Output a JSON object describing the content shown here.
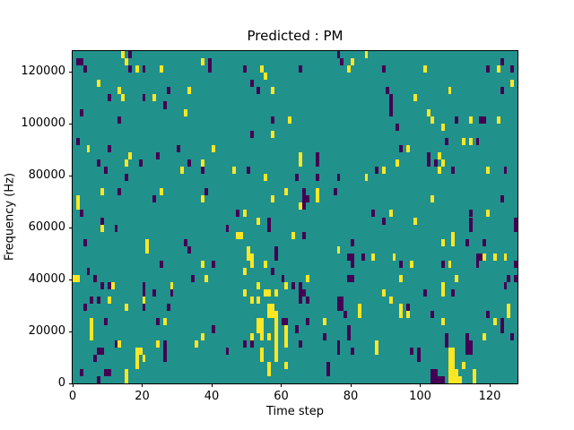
{
  "chart_data": {
    "type": "heatmap",
    "title": "Predicted : PM",
    "xlabel": "Time step",
    "ylabel": "Frequency (Hz)",
    "x_ticks": [
      "0",
      "20",
      "40",
      "60",
      "80",
      "100",
      "120"
    ],
    "x_tick_values": [
      0,
      20,
      40,
      60,
      80,
      100,
      120
    ],
    "y_ticks": [
      "0",
      "20000",
      "40000",
      "60000",
      "80000",
      "100000",
      "120000"
    ],
    "y_tick_values": [
      0,
      20000,
      40000,
      60000,
      80000,
      100000,
      120000
    ],
    "x_range": [
      0,
      128
    ],
    "y_range": [
      0,
      128000
    ],
    "grid_cols": 128,
    "grid_rows": 46,
    "legend": "none",
    "grid_lines": "off",
    "colors": {
      "background": "#21918c",
      "low": "#440154",
      "high": "#fde725",
      "spine": "#000000",
      "text": "#000000"
    },
    "cells_low": [
      [
        1,
        44
      ],
      [
        2,
        44
      ],
      [
        3,
        43
      ],
      [
        16,
        45
      ],
      [
        16,
        43
      ],
      [
        20,
        43
      ],
      [
        27,
        40
      ],
      [
        10,
        39
      ],
      [
        20,
        39
      ],
      [
        26,
        38
      ],
      [
        2,
        37
      ],
      [
        13,
        36
      ],
      [
        1,
        33
      ],
      [
        10,
        32
      ],
      [
        24,
        31
      ],
      [
        30,
        32
      ],
      [
        39,
        44
      ],
      [
        39,
        43
      ],
      [
        76,
        45
      ],
      [
        77,
        44
      ],
      [
        49,
        43
      ],
      [
        51,
        41
      ],
      [
        53,
        40
      ],
      [
        65,
        43
      ],
      [
        57,
        36
      ],
      [
        51,
        34
      ],
      [
        70,
        31
      ],
      [
        123,
        44
      ],
      [
        89,
        43
      ],
      [
        119,
        43
      ],
      [
        126,
        43
      ],
      [
        90,
        40
      ],
      [
        91,
        39
      ],
      [
        91,
        38
      ],
      [
        91,
        37
      ],
      [
        110,
        36
      ],
      [
        117,
        36
      ],
      [
        118,
        36
      ],
      [
        93,
        35
      ],
      [
        107,
        33
      ],
      [
        116,
        33
      ],
      [
        94,
        32
      ],
      [
        102,
        31
      ],
      [
        123,
        40
      ],
      [
        7,
        30
      ],
      [
        19,
        30
      ],
      [
        33,
        30
      ],
      [
        9,
        29
      ],
      [
        37,
        29
      ],
      [
        15,
        28
      ],
      [
        13,
        26
      ],
      [
        38,
        26
      ],
      [
        23,
        25
      ],
      [
        2,
        23
      ],
      [
        8,
        22
      ],
      [
        12,
        21
      ],
      [
        3,
        19
      ],
      [
        32,
        19
      ],
      [
        33,
        18
      ],
      [
        25,
        16
      ],
      [
        40,
        16
      ],
      [
        4,
        15
      ],
      [
        70,
        30
      ],
      [
        50,
        29
      ],
      [
        64,
        28
      ],
      [
        70,
        28
      ],
      [
        76,
        28
      ],
      [
        66,
        26
      ],
      [
        66,
        25
      ],
      [
        67,
        25
      ],
      [
        66,
        24
      ],
      [
        75,
        26
      ],
      [
        47,
        23
      ],
      [
        56,
        22
      ],
      [
        56,
        21
      ],
      [
        44,
        21
      ],
      [
        66,
        20
      ],
      [
        58,
        18
      ],
      [
        58,
        17
      ],
      [
        57,
        15
      ],
      [
        80,
        19
      ],
      [
        79,
        17
      ],
      [
        80,
        17
      ],
      [
        80,
        16
      ],
      [
        83,
        17
      ],
      [
        102,
        30
      ],
      [
        104,
        30
      ],
      [
        87,
        29
      ],
      [
        109,
        29
      ],
      [
        124,
        29
      ],
      [
        123,
        25
      ],
      [
        86,
        23
      ],
      [
        114,
        23
      ],
      [
        114,
        22
      ],
      [
        89,
        22
      ],
      [
        127,
        22
      ],
      [
        127,
        21
      ],
      [
        114,
        21
      ],
      [
        113,
        19
      ],
      [
        118,
        19
      ],
      [
        116,
        17
      ],
      [
        117,
        17
      ],
      [
        116,
        16
      ],
      [
        94,
        16
      ],
      [
        106,
        16
      ],
      [
        127,
        16
      ],
      [
        6,
        14
      ],
      [
        8,
        13
      ],
      [
        10,
        13
      ],
      [
        20,
        13
      ],
      [
        20,
        12
      ],
      [
        23,
        12
      ],
      [
        28,
        12
      ],
      [
        34,
        14
      ],
      [
        5,
        11
      ],
      [
        7,
        11
      ],
      [
        3,
        10
      ],
      [
        20,
        10
      ],
      [
        24,
        8
      ],
      [
        27,
        10
      ],
      [
        9,
        8
      ],
      [
        12,
        5
      ],
      [
        7,
        4
      ],
      [
        8,
        4
      ],
      [
        6,
        3
      ],
      [
        26,
        5
      ],
      [
        26,
        4
      ],
      [
        26,
        3
      ],
      [
        40,
        7
      ],
      [
        2,
        1
      ],
      [
        9,
        1
      ],
      [
        10,
        1
      ],
      [
        7,
        0
      ],
      [
        60,
        14
      ],
      [
        79,
        14
      ],
      [
        80,
        14
      ],
      [
        63,
        13
      ],
      [
        65,
        13
      ],
      [
        65,
        12
      ],
      [
        65,
        11
      ],
      [
        66,
        12
      ],
      [
        67,
        11
      ],
      [
        60,
        8
      ],
      [
        61,
        8
      ],
      [
        64,
        7
      ],
      [
        65,
        5
      ],
      [
        67,
        8
      ],
      [
        72,
        6
      ],
      [
        76,
        11
      ],
      [
        77,
        11
      ],
      [
        76,
        10
      ],
      [
        77,
        10
      ],
      [
        78,
        9
      ],
      [
        79,
        7
      ],
      [
        79,
        6
      ],
      [
        76,
        5
      ],
      [
        76,
        4
      ],
      [
        80,
        4
      ],
      [
        73,
        2
      ],
      [
        73,
        1
      ],
      [
        51,
        5
      ],
      [
        49,
        5
      ],
      [
        44,
        4
      ],
      [
        125,
        14
      ],
      [
        109,
        12
      ],
      [
        101,
        12
      ],
      [
        124,
        13
      ],
      [
        96,
        10
      ],
      [
        103,
        9
      ],
      [
        119,
        9
      ],
      [
        123,
        8
      ],
      [
        123,
        7
      ],
      [
        126,
        6
      ],
      [
        97,
        4
      ],
      [
        99,
        4
      ],
      [
        99,
        3
      ],
      [
        107,
        6
      ],
      [
        107,
        5
      ],
      [
        113,
        6
      ],
      [
        113,
        5
      ],
      [
        113,
        4
      ],
      [
        114,
        5
      ],
      [
        114,
        4
      ],
      [
        103,
        1
      ],
      [
        103,
        0
      ],
      [
        104,
        1
      ],
      [
        104,
        0
      ],
      [
        105,
        0
      ],
      [
        106,
        0
      ],
      [
        127,
        14
      ]
    ],
    "cells_high": [
      [
        14,
        45
      ],
      [
        15,
        44
      ],
      [
        7,
        41
      ],
      [
        18,
        43
      ],
      [
        25,
        43
      ],
      [
        13,
        40
      ],
      [
        14,
        39
      ],
      [
        23,
        39
      ],
      [
        33,
        40
      ],
      [
        32,
        37
      ],
      [
        4,
        32
      ],
      [
        40,
        32
      ],
      [
        37,
        44
      ],
      [
        16,
        31
      ],
      [
        80,
        44
      ],
      [
        84,
        45
      ],
      [
        79,
        43
      ],
      [
        54,
        43
      ],
      [
        55,
        42
      ],
      [
        57,
        40
      ],
      [
        62,
        36
      ],
      [
        57,
        34
      ],
      [
        65,
        31
      ],
      [
        101,
        43
      ],
      [
        122,
        43
      ],
      [
        126,
        41
      ],
      [
        98,
        39
      ],
      [
        108,
        40
      ],
      [
        102,
        37
      ],
      [
        103,
        36
      ],
      [
        114,
        36
      ],
      [
        122,
        36
      ],
      [
        106,
        35
      ],
      [
        112,
        33
      ],
      [
        114,
        33
      ],
      [
        96,
        32
      ],
      [
        105,
        31
      ],
      [
        15,
        30
      ],
      [
        37,
        30
      ],
      [
        31,
        29
      ],
      [
        8,
        26
      ],
      [
        25,
        26
      ],
      [
        1,
        25
      ],
      [
        1,
        24
      ],
      [
        37,
        25
      ],
      [
        8,
        21
      ],
      [
        21,
        19
      ],
      [
        21,
        18
      ],
      [
        37,
        16
      ],
      [
        65,
        30
      ],
      [
        46,
        29
      ],
      [
        55,
        28
      ],
      [
        84,
        28
      ],
      [
        61,
        26
      ],
      [
        70,
        26
      ],
      [
        70,
        25
      ],
      [
        57,
        25
      ],
      [
        65,
        24
      ],
      [
        49,
        23
      ],
      [
        53,
        22
      ],
      [
        47,
        20
      ],
      [
        48,
        20
      ],
      [
        63,
        20
      ],
      [
        50,
        18
      ],
      [
        50,
        17
      ],
      [
        51,
        17
      ],
      [
        51,
        16
      ],
      [
        55,
        16
      ],
      [
        49,
        15
      ],
      [
        76,
        18
      ],
      [
        93,
        30
      ],
      [
        106,
        30
      ],
      [
        89,
        29
      ],
      [
        105,
        29
      ],
      [
        119,
        29
      ],
      [
        103,
        25
      ],
      [
        91,
        23
      ],
      [
        119,
        23
      ],
      [
        98,
        22
      ],
      [
        109,
        20
      ],
      [
        109,
        19
      ],
      [
        106,
        19
      ],
      [
        118,
        17
      ],
      [
        121,
        17
      ],
      [
        86,
        17
      ],
      [
        92,
        17
      ],
      [
        97,
        16
      ],
      [
        108,
        16
      ],
      [
        124,
        17
      ],
      [
        0,
        14
      ],
      [
        1,
        14
      ],
      [
        11,
        13
      ],
      [
        28,
        13
      ],
      [
        38,
        14
      ],
      [
        10,
        11
      ],
      [
        20,
        11
      ],
      [
        15,
        10
      ],
      [
        26,
        8
      ],
      [
        5,
        8
      ],
      [
        5,
        7
      ],
      [
        5,
        6
      ],
      [
        13,
        5
      ],
      [
        18,
        4
      ],
      [
        19,
        4
      ],
      [
        18,
        3
      ],
      [
        18,
        2
      ],
      [
        20,
        3
      ],
      [
        24,
        5
      ],
      [
        35,
        5
      ],
      [
        37,
        6
      ],
      [
        15,
        1
      ],
      [
        15,
        0
      ],
      [
        67,
        14
      ],
      [
        53,
        13
      ],
      [
        61,
        13
      ],
      [
        49,
        12
      ],
      [
        51,
        11
      ],
      [
        55,
        12
      ],
      [
        56,
        12
      ],
      [
        58,
        12
      ],
      [
        53,
        11
      ],
      [
        56,
        10
      ],
      [
        57,
        10
      ],
      [
        56,
        9
      ],
      [
        57,
        9
      ],
      [
        58,
        9
      ],
      [
        53,
        8
      ],
      [
        54,
        8
      ],
      [
        53,
        7
      ],
      [
        54,
        7
      ],
      [
        54,
        6
      ],
      [
        56,
        6
      ],
      [
        58,
        8
      ],
      [
        58,
        7
      ],
      [
        58,
        6
      ],
      [
        58,
        5
      ],
      [
        54,
        4
      ],
      [
        54,
        3
      ],
      [
        56,
        2
      ],
      [
        56,
        1
      ],
      [
        58,
        4
      ],
      [
        58,
        3
      ],
      [
        51,
        6
      ],
      [
        61,
        7
      ],
      [
        61,
        6
      ],
      [
        61,
        5
      ],
      [
        61,
        2
      ],
      [
        72,
        8
      ],
      [
        82,
        10
      ],
      [
        82,
        9
      ],
      [
        94,
        14
      ],
      [
        110,
        14
      ],
      [
        106,
        13
      ],
      [
        106,
        12
      ],
      [
        89,
        12
      ],
      [
        91,
        11
      ],
      [
        94,
        10
      ],
      [
        94,
        9
      ],
      [
        96,
        9
      ],
      [
        106,
        8
      ],
      [
        125,
        10
      ],
      [
        125,
        9
      ],
      [
        121,
        8
      ],
      [
        118,
        6
      ],
      [
        87,
        5
      ],
      [
        87,
        4
      ],
      [
        108,
        4
      ],
      [
        108,
        3
      ],
      [
        108,
        2
      ],
      [
        108,
        1
      ],
      [
        108,
        0
      ],
      [
        109,
        4
      ],
      [
        109,
        3
      ],
      [
        109,
        2
      ],
      [
        109,
        1
      ],
      [
        109,
        0
      ],
      [
        110,
        1
      ],
      [
        110,
        0
      ],
      [
        111,
        0
      ],
      [
        112,
        2
      ],
      [
        115,
        1
      ],
      [
        115,
        0
      ]
    ]
  }
}
